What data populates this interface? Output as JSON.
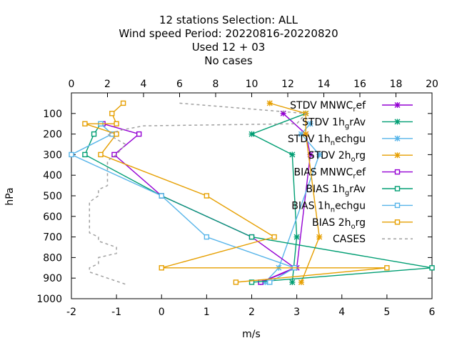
{
  "chart_data": {
    "type": "line",
    "title_lines": [
      "12 stations Selection: ALL",
      "Wind speed  Period: 20220816-20220820",
      "Used  12 + 03",
      "No cases"
    ],
    "xlabel": "m/s",
    "ylabel": "hPa",
    "xlim": [
      -2,
      6
    ],
    "ylim": [
      1000,
      0
    ],
    "x_ticks": [
      -2,
      -1,
      0,
      1,
      2,
      3,
      4,
      5,
      6
    ],
    "y_ticks": [
      100,
      200,
      300,
      400,
      500,
      600,
      700,
      800,
      900,
      1000
    ],
    "x2_label": "",
    "x2lim": [
      0,
      20
    ],
    "x2_ticks": [
      0,
      2,
      4,
      6,
      8,
      10,
      12,
      14,
      16,
      18,
      20
    ],
    "grid": false,
    "legend_position": "top-right",
    "series": [
      {
        "name": "STDV MNWC_ref",
        "label_parts": [
          [
            "STDV MNWC",
            ""
          ],
          [
            "r",
            "sub"
          ],
          [
            "ef",
            ""
          ]
        ],
        "color": "#9400d3",
        "marker": "x",
        "x": [
          2.7,
          3.2,
          3.3,
          3.0,
          2.2
        ],
        "y": [
          100,
          200,
          300,
          850,
          920
        ]
      },
      {
        "name": "STDV 1h_grAv",
        "label_parts": [
          [
            "STDV 1h",
            ""
          ],
          [
            "g",
            "sub"
          ],
          [
            "rAv",
            ""
          ]
        ],
        "color": "#009e73",
        "marker": "x",
        "x": [
          3.2,
          2.0,
          2.9,
          3.0,
          2.9
        ],
        "y": [
          100,
          200,
          300,
          700,
          920
        ]
      },
      {
        "name": "STDV 1h_nechgu",
        "label_parts": [
          [
            "STDV 1h",
            ""
          ],
          [
            "n",
            "sub"
          ],
          [
            "echgu",
            ""
          ]
        ],
        "color": "#56b4e9",
        "marker": "x",
        "x": [
          3.3,
          3.1,
          3.5,
          2.6,
          2.3
        ],
        "y": [
          150,
          200,
          300,
          850,
          920
        ]
      },
      {
        "name": "STDV 2h_org",
        "label_parts": [
          [
            "STDV 2h",
            ""
          ],
          [
            "o",
            "sub"
          ],
          [
            "rg",
            ""
          ]
        ],
        "color": "#e69f00",
        "marker": "x",
        "x": [
          2.4,
          3.2,
          3.2,
          3.5,
          3.1
        ],
        "y": [
          50,
          100,
          200,
          700,
          920
        ]
      },
      {
        "name": "BIAS MNWC_ref",
        "label_parts": [
          [
            "BIAS MNWC",
            ""
          ],
          [
            "r",
            "sub"
          ],
          [
            "ef",
            ""
          ]
        ],
        "color": "#9400d3",
        "marker": "square",
        "x": [
          -1.3,
          -0.5,
          -1.05,
          0.0,
          2.0,
          2.95,
          2.2
        ],
        "y": [
          150,
          200,
          300,
          500,
          700,
          850,
          920
        ]
      },
      {
        "name": "BIAS 1h_grAv",
        "label_parts": [
          [
            "BIAS 1h",
            ""
          ],
          [
            "g",
            "sub"
          ],
          [
            "rAv",
            ""
          ]
        ],
        "color": "#009e73",
        "marker": "square",
        "x": [
          -1.35,
          -1.5,
          -1.7,
          0.0,
          2.0,
          6.0,
          2.0
        ],
        "y": [
          150,
          200,
          300,
          500,
          700,
          850,
          920
        ]
      },
      {
        "name": "BIAS 1h_nechgu",
        "label_parts": [
          [
            "BIAS 1h",
            ""
          ],
          [
            "n",
            "sub"
          ],
          [
            "echgu",
            ""
          ]
        ],
        "color": "#56b4e9",
        "marker": "square",
        "x": [
          -1.35,
          -1.1,
          -2.0,
          0.0,
          1.0,
          2.95,
          2.4
        ],
        "y": [
          150,
          200,
          300,
          500,
          700,
          850,
          920
        ]
      },
      {
        "name": "BIAS 2h_org",
        "label_parts": [
          [
            "BIAS 2h",
            ""
          ],
          [
            "o",
            "sub"
          ],
          [
            "rg",
            ""
          ]
        ],
        "color": "#e69f00",
        "marker": "square",
        "x": [
          -0.85,
          -1.1,
          -1.0,
          -1.7,
          -1.0,
          -1.35,
          1.0,
          2.5,
          0.0,
          5.0,
          1.65
        ],
        "y": [
          50,
          100,
          150,
          150,
          200,
          300,
          500,
          700,
          850,
          850,
          920
        ]
      },
      {
        "name": "CASES",
        "label_parts": [
          [
            "CASES",
            ""
          ]
        ],
        "color": "#a0a0a0",
        "marker": "none",
        "dashed": true,
        "axis": "x2",
        "x": [
          6.0,
          13.0,
          12.5,
          4.0,
          2.8,
          2.0,
          3.0,
          2.5,
          2.0,
          2.0,
          2.0,
          2.0,
          2.0,
          2.0,
          1.5,
          1.5,
          1.0,
          1.0,
          1.0,
          1.0,
          1.0,
          1.0,
          1.0,
          1.5,
          1.5,
          2.5,
          2.5,
          1.5,
          1.5,
          1.0,
          1.0,
          2.0,
          3.0
        ],
        "y": [
          50,
          100,
          150,
          160,
          180,
          200,
          250,
          300,
          330,
          360,
          380,
          400,
          430,
          450,
          470,
          500,
          530,
          550,
          580,
          600,
          630,
          650,
          680,
          700,
          720,
          750,
          780,
          800,
          830,
          850,
          870,
          900,
          930
        ]
      }
    ]
  }
}
